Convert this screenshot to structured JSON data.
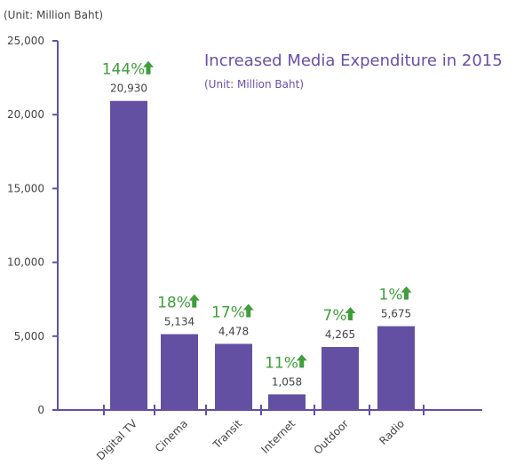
{
  "chart_data": {
    "type": "bar",
    "title": "Increased Media Expenditure in  2015",
    "subtitle": "(Unit:  Million Baht)",
    "ylabel": "(Unit:  Million Baht)",
    "xlabel": "",
    "categories": [
      "Digital TV",
      "Cinema",
      "Transit",
      "Internet",
      "Outdoor",
      "Radio"
    ],
    "values": [
      20930,
      5134,
      4478,
      1058,
      4265,
      5675
    ],
    "data_labels": [
      "20,930",
      "5,134",
      "4,478",
      "1,058",
      "4,265",
      "5,675"
    ],
    "growth_labels": [
      "144%",
      "18%",
      "17%",
      "11%",
      "7%",
      "1%"
    ],
    "ylim": [
      0,
      25000
    ],
    "yticks": [
      0,
      5000,
      10000,
      15000,
      20000,
      25000
    ],
    "ytick_labels": [
      "0",
      "5,000",
      "10,000",
      "15,000",
      "20,000",
      "25,000"
    ],
    "grid": false,
    "colors": {
      "bar": "#6350a3",
      "axis": "#6350a3",
      "growth": "#3f9e3a",
      "title": "#6a4fa6",
      "text": "#444444"
    },
    "icons": {
      "growth": "up-arrow-icon"
    }
  }
}
